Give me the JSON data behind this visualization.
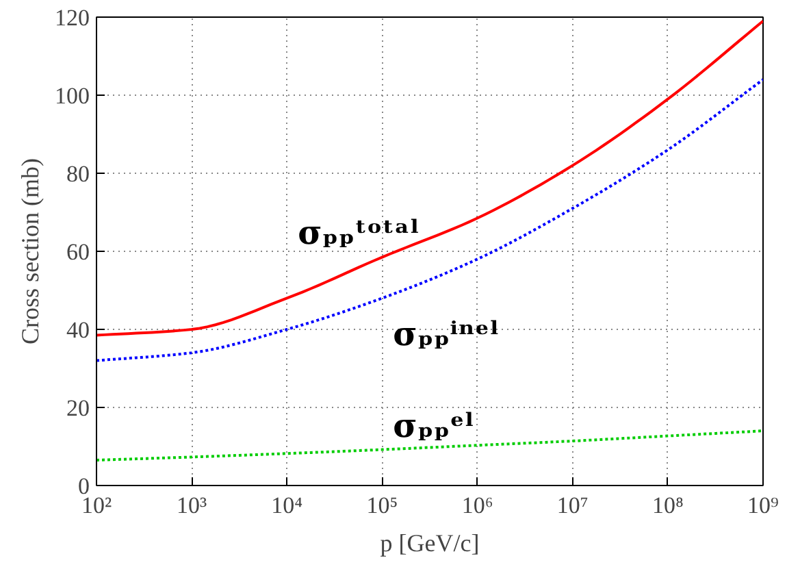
{
  "chart_data": {
    "type": "line",
    "xlabel": "p [GeV/c]",
    "ylabel": "Cross section (mb)",
    "log": "x",
    "x": [
      100,
      1000,
      10000,
      100000,
      1000000,
      10000000,
      100000000,
      1000000000
    ],
    "series": [
      {
        "name": "σₚₚᵗᵒᵗᵃˡ",
        "color": "#ff0000",
        "line_style": "solid",
        "values": [
          38.5,
          40,
          48,
          58.5,
          68.5,
          82,
          99,
          119
        ]
      },
      {
        "name": "σₚₚⁱⁿᵉˡ",
        "color": "#0000ff",
        "line_style": "dotted",
        "values": [
          32,
          34,
          40,
          48,
          58,
          71,
          86,
          104
        ]
      },
      {
        "name": "σₚₚᵉˡ",
        "color": "#00cc00",
        "line_style": "dotted",
        "values": [
          6.5,
          7.3,
          8.2,
          9.2,
          10.3,
          11.4,
          12.7,
          14
        ]
      }
    ],
    "xlim": [
      100,
      1000000000
    ],
    "ylim": [
      0,
      120
    ],
    "xticks": [
      {
        "value": 100,
        "label": "10²"
      },
      {
        "value": 1000,
        "label": "10³"
      },
      {
        "value": 10000,
        "label": "10⁴"
      },
      {
        "value": 100000,
        "label": "10⁵"
      },
      {
        "value": 1000000,
        "label": "10⁶"
      },
      {
        "value": 10000000,
        "label": "10⁷"
      },
      {
        "value": 100000000,
        "label": "10⁸"
      },
      {
        "value": 1000000000,
        "label": "10⁹"
      }
    ],
    "yticks": [
      0,
      20,
      40,
      60,
      80,
      100,
      120
    ],
    "grid": true
  }
}
